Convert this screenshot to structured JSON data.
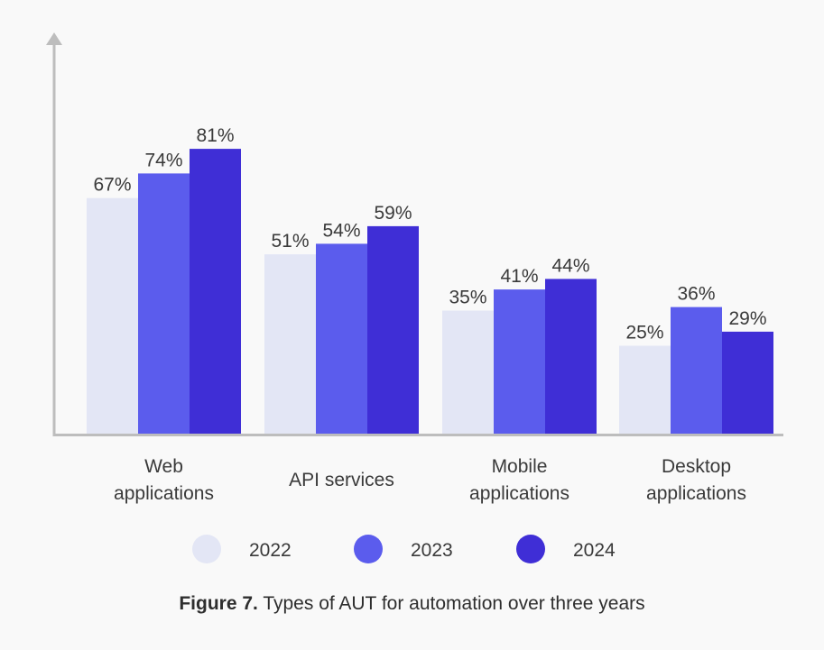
{
  "chart_data": {
    "type": "bar",
    "categories": [
      [
        "Web",
        "applications"
      ],
      [
        "API services"
      ],
      [
        "Mobile",
        "applications"
      ],
      [
        "Desktop",
        "applications"
      ]
    ],
    "series": [
      {
        "name": "2022",
        "values": [
          67,
          51,
          35,
          25
        ],
        "color": "#e3e6f5"
      },
      {
        "name": "2023",
        "values": [
          74,
          54,
          41,
          36
        ],
        "color": "#5b5ced"
      },
      {
        "name": "2024",
        "values": [
          81,
          59,
          44,
          29
        ],
        "color": "#3f2ed6"
      }
    ],
    "value_suffix": "%",
    "ylim": [
      0,
      100
    ],
    "grid": false,
    "legend": "bottom",
    "axis_color": "#bdbdbd"
  },
  "caption": {
    "label": "Figure 7.",
    "text": " Types of AUT for automation over three years"
  }
}
